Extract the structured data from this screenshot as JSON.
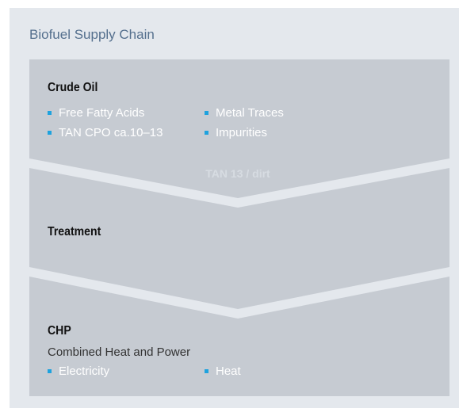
{
  "title": "Biofuel Supply Chain",
  "stages": [
    {
      "title": "Crude Oil",
      "items": [
        "Free Fatty Acids",
        "Metal Traces",
        "TAN CPO ca.10–13",
        "Impurities"
      ]
    },
    {
      "title": "Treatment",
      "items": []
    },
    {
      "title": "CHP",
      "subtitle": "Combined Heat and Power",
      "items": [
        "Electricity",
        "Heat"
      ]
    }
  ],
  "connector": "TAN 13 / dirt"
}
